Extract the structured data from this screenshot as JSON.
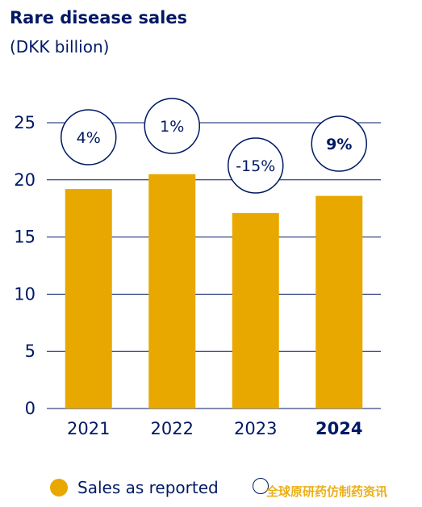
{
  "chart_data": {
    "type": "bar",
    "title": "Rare disease sales",
    "subtitle": "(DKK billion)",
    "categories": [
      "2021",
      "2022",
      "2023",
      "2024"
    ],
    "bold_categories": [
      "2024"
    ],
    "series": [
      {
        "name": "Sales as reported",
        "values": [
          19.2,
          20.5,
          17.1,
          18.6
        ],
        "color": "#e8a800"
      }
    ],
    "growth_labels": [
      "4%",
      "1%",
      "-15%",
      "9%"
    ],
    "growth_bold": [
      false,
      false,
      false,
      true
    ],
    "ylim": [
      0,
      25
    ],
    "yticks": [
      0,
      5,
      10,
      15,
      20,
      25
    ],
    "grid": true,
    "legend_position": "bottom",
    "legend": [
      {
        "label": "Sales as reported",
        "marker": "filled-circle",
        "color": "#e8a800"
      },
      {
        "label": "",
        "marker": "outline-circle",
        "color": "#001965"
      }
    ]
  },
  "watermark": "全球原研药仿制药资讯",
  "colors": {
    "text": "#001965",
    "bar": "#e8a800",
    "grid": "#001965"
  }
}
